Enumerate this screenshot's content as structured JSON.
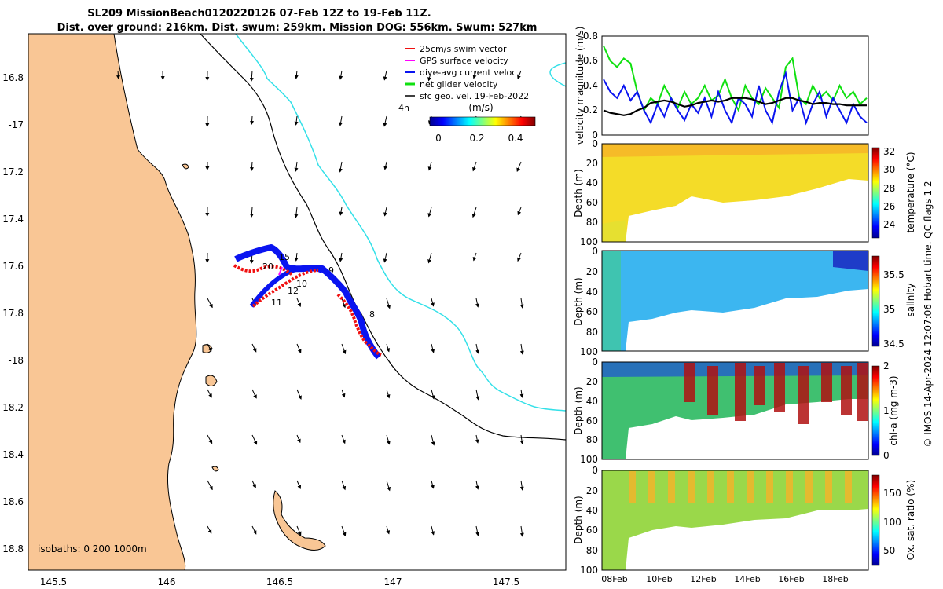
{
  "figure": {
    "title_line1": "SL209 MissionBeach0120220126 07-Feb 12Z to 19-Feb 11Z.",
    "title_line2": "Dist. over ground: 216km. Dist. swum: 259km. Mission DOG: 556km. Swum: 527km",
    "credit": "© IMOS 14-Apr-2024 12:07:06 Hobart time. QC flags 1  2"
  },
  "map": {
    "lon_ticks": [
      "145.5",
      "146",
      "146.5",
      "147",
      "147.5"
    ],
    "lat_ticks": [
      "16.8",
      "-17",
      "17.2",
      "17.4",
      "17.6",
      "17.8",
      "-18",
      "18.2",
      "18.4",
      "18.6",
      "18.8"
    ],
    "isobath_label": "isobaths: 0   200  1000m",
    "colors": {
      "land": "#f9c695",
      "isobath_200": "#000000",
      "isobath_1000": "#33e0e8",
      "track_blue": "#0a14f0",
      "track_red": "#f01010",
      "track_magenta": "#ff00ff"
    },
    "legend": [
      {
        "label": "25cm/s swim vector",
        "color": "#f01010"
      },
      {
        "label": "GPS surface velocity",
        "color": "#ff00ff"
      },
      {
        "label": "dive-avg current veloc.",
        "color": "#0a14f0"
      },
      {
        "label": "net glider velocity",
        "color": "#10e010"
      },
      {
        "label": "sfc geo. vel. 19-Feb-2022",
        "color": "#000000"
      }
    ],
    "scale_label": "4h",
    "colorbar": {
      "label": "(m/s)",
      "ticks": [
        "0",
        "0.2",
        "0.4"
      ]
    },
    "day_labels": [
      "8",
      "9",
      "10",
      "11",
      "12",
      "15",
      "20"
    ]
  },
  "chart_data": [
    {
      "type": "line",
      "title": "",
      "ylabel": "velocity magnitude (m/s)",
      "xlabel": "",
      "ylim": [
        0,
        0.8
      ],
      "y_ticks": [
        "0",
        "0.2",
        "0.4",
        "0.6",
        "0.8"
      ],
      "series": [
        {
          "name": "net glider velocity",
          "color": "#10e010",
          "values": [
            0.72,
            0.6,
            0.55,
            0.62,
            0.58,
            0.35,
            0.2,
            0.3,
            0.25,
            0.4,
            0.3,
            0.22,
            0.35,
            0.25,
            0.3,
            0.4,
            0.28,
            0.32,
            0.45,
            0.3,
            0.2,
            0.4,
            0.3,
            0.25,
            0.38,
            0.3,
            0.22,
            0.55,
            0.62,
            0.3,
            0.25,
            0.4,
            0.3,
            0.35,
            0.28,
            0.4,
            0.3,
            0.35,
            0.25,
            0.3
          ]
        },
        {
          "name": "dive-avg current veloc.",
          "color": "#0a14f0",
          "values": [
            0.45,
            0.35,
            0.3,
            0.4,
            0.28,
            0.35,
            0.2,
            0.1,
            0.25,
            0.15,
            0.3,
            0.2,
            0.12,
            0.25,
            0.18,
            0.3,
            0.15,
            0.35,
            0.2,
            0.1,
            0.3,
            0.25,
            0.15,
            0.4,
            0.2,
            0.1,
            0.35,
            0.5,
            0.2,
            0.3,
            0.1,
            0.25,
            0.35,
            0.15,
            0.3,
            0.2,
            0.1,
            0.25,
            0.15,
            0.1
          ]
        },
        {
          "name": "sfc geo. vel.",
          "color": "#000000",
          "values": [
            0.2,
            0.18,
            0.17,
            0.16,
            0.17,
            0.2,
            0.22,
            0.26,
            0.27,
            0.28,
            0.27,
            0.25,
            0.23,
            0.24,
            0.26,
            0.27,
            0.28,
            0.27,
            0.28,
            0.3,
            0.3,
            0.3,
            0.29,
            0.27,
            0.25,
            0.26,
            0.28,
            0.3,
            0.3,
            0.28,
            0.27,
            0.25,
            0.26,
            0.26,
            0.25,
            0.25,
            0.24,
            0.24,
            0.24,
            0.24
          ]
        }
      ]
    },
    {
      "type": "heatmap",
      "variable": "temperature",
      "cbar_label": "temperature (°C)",
      "cbar_ticks": [
        "24",
        "26",
        "28",
        "30",
        "32"
      ],
      "clim": [
        22.5,
        32.5
      ],
      "ylabel": "Depth (m)",
      "y_ticks": [
        "0",
        "20",
        "40",
        "60",
        "80",
        "100"
      ],
      "ylim": [
        100,
        0
      ]
    },
    {
      "type": "heatmap",
      "variable": "salinity",
      "cbar_label": "salinity",
      "cbar_ticks": [
        "34.5",
        "35",
        "35.5"
      ],
      "clim": [
        34.4,
        35.8
      ],
      "ylabel": "Depth (m)",
      "y_ticks": [
        "0",
        "20",
        "40",
        "60",
        "80",
        "100"
      ],
      "ylim": [
        100,
        0
      ]
    },
    {
      "type": "heatmap",
      "variable": "chl-a",
      "cbar_label": "chl-a (mg m-3)",
      "cbar_ticks": [
        "0",
        "1",
        "2"
      ],
      "clim": [
        0,
        2
      ],
      "ylabel": "Depth (m)",
      "y_ticks": [
        "0",
        "20",
        "40",
        "60",
        "80",
        "100"
      ],
      "ylim": [
        100,
        0
      ]
    },
    {
      "type": "heatmap",
      "variable": "oxygen",
      "cbar_label": "Ox. sat. ratio (%)",
      "cbar_ticks": [
        "50",
        "100",
        "150"
      ],
      "clim": [
        20,
        175
      ],
      "ylabel": "Depth (m)",
      "y_ticks": [
        "0",
        "20",
        "40",
        "60",
        "80",
        "100"
      ],
      "ylim": [
        100,
        0
      ],
      "x_ticks": [
        "08Feb",
        "10Feb",
        "12Feb",
        "14Feb",
        "16Feb",
        "18Feb"
      ]
    }
  ]
}
